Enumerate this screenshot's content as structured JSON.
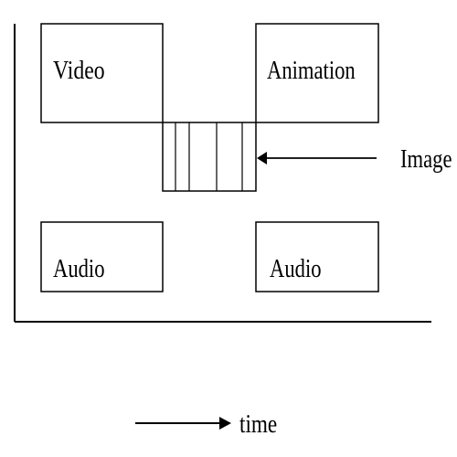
{
  "labels": {
    "video": "Video",
    "animation": "Animation",
    "image": "Image",
    "audio_left": "Audio",
    "audio_right": "Audio",
    "time": "time"
  },
  "colors": {
    "stroke": "#000000",
    "background": "#ffffff"
  },
  "image_frames": 4
}
